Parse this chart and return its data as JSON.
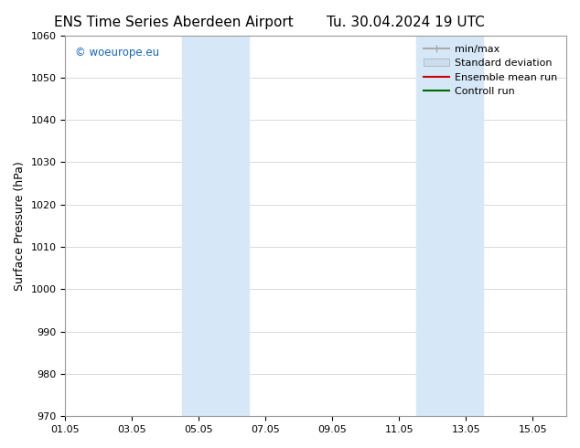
{
  "title": "ENS Time Series Aberdeen Airport",
  "title2": "Tu. 30.04.2024 19 UTC",
  "ylabel": "Surface Pressure (hPa)",
  "ylim": [
    970,
    1060
  ],
  "yticks": [
    970,
    980,
    990,
    1000,
    1010,
    1020,
    1030,
    1040,
    1050,
    1060
  ],
  "xlim_start": 0,
  "xlim_end": 15,
  "xtick_labels": [
    "01.05",
    "03.05",
    "05.05",
    "07.05",
    "09.05",
    "11.05",
    "13.05",
    "15.05"
  ],
  "xtick_positions": [
    0,
    2,
    4,
    6,
    8,
    10,
    12,
    14
  ],
  "shaded_bands": [
    {
      "xmin": 3.5,
      "xmax": 5.5,
      "color": "#d6e8f7"
    },
    {
      "xmin": 10.5,
      "xmax": 12.5,
      "color": "#d6e8f7"
    }
  ],
  "watermark_text": "© woeurope.eu",
  "watermark_color": "#1565c0",
  "legend_entries": [
    {
      "label": "min/max",
      "color": "#aaaaaa",
      "lw": 1.5,
      "style": "minmax"
    },
    {
      "label": "Standard deviation",
      "color": "#ccddee",
      "lw": 6,
      "style": "band"
    },
    {
      "label": "Ensemble mean run",
      "color": "#cc0000",
      "lw": 1.5,
      "style": "line"
    },
    {
      "label": "Controll run",
      "color": "#006600",
      "lw": 1.5,
      "style": "line"
    }
  ],
  "background_color": "#ffffff",
  "grid_color": "#cccccc",
  "font_family": "DejaVu Sans",
  "title_fontsize": 11,
  "axis_fontsize": 9,
  "tick_fontsize": 8
}
